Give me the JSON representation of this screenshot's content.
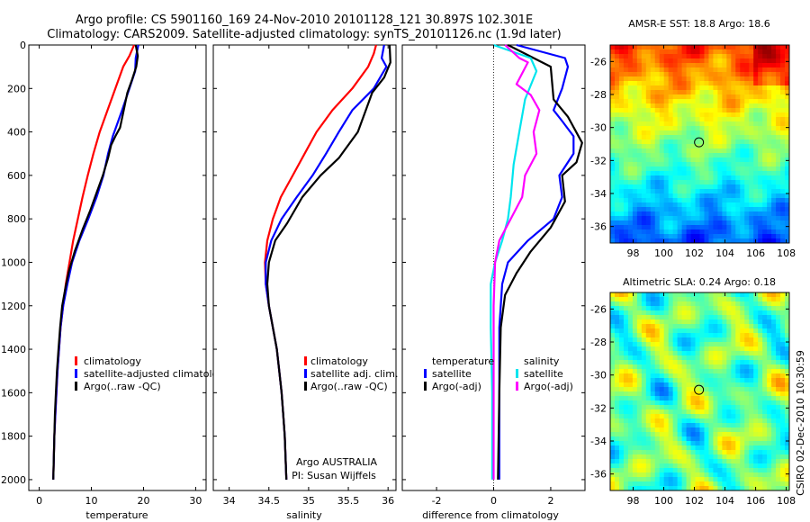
{
  "title": {
    "line1": "Argo profile: CS 5901160_169 24-Nov-2010 20101128_121 30.897S 102.301E",
    "line2": "Climatology: CARS2009. Satellite-adjusted climatology: synTS_20101126.nc (1.9d later)"
  },
  "colors": {
    "climatology": "#ff0000",
    "satellite": "#0000ff",
    "argo": "#000000",
    "sal_satellite": "#00e5ee",
    "sal_argo": "#ff00ff"
  },
  "depth_ticks": [
    "0",
    "200",
    "400",
    "600",
    "800",
    "1000",
    "1200",
    "1400",
    "1600",
    "1800",
    "2000"
  ],
  "credit": {
    "line1": "Argo AUSTRALIA",
    "line2": "PI: Susan Wijffels"
  },
  "side_label": "CSIRO 02-Dec-2010 10:30:59",
  "maps": {
    "sst": {
      "title": "AMSR-E SST: 18.8 Argo: 18.6",
      "lat_ticks": [
        "-26",
        "-28",
        "-30",
        "-32",
        "-34",
        "-36"
      ],
      "lon_ticks": [
        "98",
        "100",
        "102",
        "104",
        "106",
        "108"
      ]
    },
    "sla": {
      "title": "Altimetric SLA: 0.24 Argo: 0.18",
      "lat_ticks": [
        "-26",
        "-28",
        "-30",
        "-32",
        "-34",
        "-36"
      ],
      "lon_ticks": [
        "98",
        "100",
        "102",
        "104",
        "106",
        "108"
      ]
    },
    "float_position": {
      "lon": 102.3,
      "lat": -30.9
    }
  },
  "chart_data": [
    {
      "type": "line",
      "name": "temperature-profile",
      "xlabel": "temperature",
      "ylabel": "",
      "xlim": [
        -2,
        32
      ],
      "ylim": [
        2050,
        0
      ],
      "xticks": [
        "0",
        "10",
        "20",
        "30"
      ],
      "legend": [
        "climatology",
        "satellite-adjusted climatolog",
        "Argo(..raw -QC)"
      ],
      "legend_position": "bottom-right",
      "series": [
        {
          "name": "climatology",
          "color": "#ff0000",
          "points": [
            [
              18.2,
              0
            ],
            [
              17.3,
              50
            ],
            [
              16.1,
              100
            ],
            [
              14.6,
              200
            ],
            [
              13.1,
              300
            ],
            [
              11.6,
              400
            ],
            [
              10.4,
              500
            ],
            [
              9.3,
              600
            ],
            [
              8.3,
              700
            ],
            [
              7.4,
              800
            ],
            [
              6.5,
              900
            ],
            [
              5.8,
              1000
            ],
            [
              5.1,
              1100
            ],
            [
              4.6,
              1200
            ],
            [
              4.1,
              1300
            ],
            [
              3.8,
              1400
            ],
            [
              3.5,
              1500
            ],
            [
              3.3,
              1600
            ],
            [
              3.1,
              1700
            ],
            [
              2.9,
              1800
            ],
            [
              2.8,
              1900
            ],
            [
              2.7,
              2000
            ]
          ]
        },
        {
          "name": "satellite-adjusted climatolog",
          "color": "#0000ff",
          "points": [
            [
              19.0,
              0
            ],
            [
              18.5,
              60
            ],
            [
              18.4,
              120
            ],
            [
              17.3,
              200
            ],
            [
              15.9,
              300
            ],
            [
              14.7,
              380
            ],
            [
              14.1,
              420
            ],
            [
              13.2,
              500
            ],
            [
              12.3,
              600
            ],
            [
              11.0,
              700
            ],
            [
              9.4,
              800
            ],
            [
              7.7,
              900
            ],
            [
              6.3,
              1000
            ],
            [
              5.4,
              1100
            ],
            [
              4.6,
              1200
            ],
            [
              4.1,
              1300
            ],
            [
              3.8,
              1400
            ],
            [
              3.5,
              1500
            ],
            [
              3.3,
              1600
            ],
            [
              3.1,
              1700
            ],
            [
              2.9,
              1800
            ],
            [
              2.8,
              1900
            ],
            [
              2.7,
              2000
            ]
          ]
        },
        {
          "name": "Argo(..raw -QC)",
          "color": "#000000",
          "points": [
            [
              18.5,
              0
            ],
            [
              18.9,
              50
            ],
            [
              18.6,
              100
            ],
            [
              17.8,
              160
            ],
            [
              16.9,
              220
            ],
            [
              16.2,
              300
            ],
            [
              15.5,
              380
            ],
            [
              14.6,
              420
            ],
            [
              13.8,
              460
            ],
            [
              13.2,
              520
            ],
            [
              12.2,
              600
            ],
            [
              11.0,
              680
            ],
            [
              9.8,
              760
            ],
            [
              8.3,
              850
            ],
            [
              6.8,
              950
            ],
            [
              5.7,
              1040
            ],
            [
              5.0,
              1120
            ],
            [
              4.4,
              1200
            ],
            [
              4.0,
              1300
            ],
            [
              3.7,
              1400
            ],
            [
              3.4,
              1500
            ],
            [
              3.2,
              1600
            ],
            [
              3.0,
              1700
            ],
            [
              2.9,
              1800
            ],
            [
              2.8,
              1900
            ],
            [
              2.7,
              2000
            ]
          ]
        }
      ]
    },
    {
      "type": "line",
      "name": "salinity-profile",
      "xlabel": "salinity",
      "ylabel": "",
      "xlim": [
        33.8,
        36.1
      ],
      "ylim": [
        2050,
        0
      ],
      "xticks": [
        "34",
        "34.5",
        "35",
        "35.5",
        "36"
      ],
      "legend": [
        "climatology",
        "satellite adj. clim.",
        "Argo(..raw -QC)"
      ],
      "legend_position": "bottom-right",
      "series": [
        {
          "name": "climatology",
          "color": "#ff0000",
          "points": [
            [
              35.85,
              0
            ],
            [
              35.82,
              40
            ],
            [
              35.75,
              100
            ],
            [
              35.55,
              200
            ],
            [
              35.3,
              300
            ],
            [
              35.1,
              400
            ],
            [
              34.95,
              500
            ],
            [
              34.8,
              600
            ],
            [
              34.65,
              700
            ],
            [
              34.55,
              800
            ],
            [
              34.48,
              900
            ],
            [
              34.45,
              1000
            ],
            [
              34.46,
              1100
            ],
            [
              34.5,
              1200
            ],
            [
              34.55,
              1300
            ],
            [
              34.6,
              1400
            ],
            [
              34.63,
              1500
            ],
            [
              34.66,
              1600
            ],
            [
              34.68,
              1700
            ],
            [
              34.7,
              1800
            ],
            [
              34.71,
              1900
            ],
            [
              34.72,
              2000
            ]
          ]
        },
        {
          "name": "satellite adj. clim.",
          "color": "#0000ff",
          "points": [
            [
              35.95,
              0
            ],
            [
              35.92,
              60
            ],
            [
              35.98,
              100
            ],
            [
              35.82,
              200
            ],
            [
              35.55,
              300
            ],
            [
              35.38,
              400
            ],
            [
              35.22,
              500
            ],
            [
              35.05,
              600
            ],
            [
              34.85,
              700
            ],
            [
              34.66,
              800
            ],
            [
              34.53,
              900
            ],
            [
              34.46,
              1000
            ],
            [
              34.46,
              1100
            ],
            [
              34.5,
              1200
            ],
            [
              34.55,
              1300
            ],
            [
              34.6,
              1400
            ],
            [
              34.63,
              1500
            ],
            [
              34.66,
              1600
            ],
            [
              34.68,
              1700
            ],
            [
              34.7,
              1800
            ],
            [
              34.71,
              1900
            ],
            [
              34.72,
              2000
            ]
          ]
        },
        {
          "name": "Argo(..raw -QC)",
          "color": "#000000",
          "points": [
            [
              36.02,
              0
            ],
            [
              36.03,
              80
            ],
            [
              35.95,
              150
            ],
            [
              35.8,
              220
            ],
            [
              35.72,
              300
            ],
            [
              35.62,
              400
            ],
            [
              35.38,
              520
            ],
            [
              35.15,
              600
            ],
            [
              34.92,
              700
            ],
            [
              34.73,
              820
            ],
            [
              34.58,
              900
            ],
            [
              34.5,
              1000
            ],
            [
              34.48,
              1100
            ],
            [
              34.5,
              1200
            ],
            [
              34.55,
              1300
            ],
            [
              34.6,
              1400
            ],
            [
              34.63,
              1500
            ],
            [
              34.66,
              1600
            ],
            [
              34.68,
              1700
            ],
            [
              34.7,
              1800
            ],
            [
              34.71,
              1900
            ],
            [
              34.72,
              2000
            ]
          ]
        }
      ]
    },
    {
      "type": "line",
      "name": "difference-from-climatology",
      "xlabel": "difference from climatology",
      "ylabel": "",
      "xlim": [
        -3.2,
        3.2
      ],
      "ylim": [
        2050,
        0
      ],
      "xticks": [
        "-2",
        "0",
        "2"
      ],
      "zero_line": true,
      "legend_groups": [
        {
          "title": "temperature",
          "items": [
            "satellite",
            "Argo(-adj)"
          ]
        },
        {
          "title": "salinity",
          "items": [
            "satellite",
            "Argo(-adj)"
          ]
        }
      ],
      "legend_position": "bottom",
      "series": [
        {
          "name": "temperature satellite",
          "color": "#0000ff",
          "points": [
            [
              0.8,
              0
            ],
            [
              2.5,
              60
            ],
            [
              2.6,
              100
            ],
            [
              2.4,
              200
            ],
            [
              2.1,
              300
            ],
            [
              2.4,
              350
            ],
            [
              2.8,
              420
            ],
            [
              2.8,
              500
            ],
            [
              2.3,
              600
            ],
            [
              2.4,
              700
            ],
            [
              2.1,
              800
            ],
            [
              1.2,
              900
            ],
            [
              0.5,
              1000
            ],
            [
              0.3,
              1100
            ],
            [
              0.2,
              1300
            ],
            [
              0.2,
              1600
            ],
            [
              0.2,
              2000
            ]
          ]
        },
        {
          "name": "temperature Argo(-adj)",
          "color": "#000000",
          "points": [
            [
              0.5,
              0
            ],
            [
              2.0,
              100
            ],
            [
              2.1,
              250
            ],
            [
              2.6,
              330
            ],
            [
              3.1,
              450
            ],
            [
              2.9,
              540
            ],
            [
              2.4,
              600
            ],
            [
              2.5,
              720
            ],
            [
              2.0,
              840
            ],
            [
              1.3,
              950
            ],
            [
              0.8,
              1050
            ],
            [
              0.4,
              1150
            ],
            [
              0.25,
              1300
            ],
            [
              0.2,
              1600
            ],
            [
              0.15,
              2000
            ]
          ]
        },
        {
          "name": "salinity satellite",
          "color": "#00e5ee",
          "points": [
            [
              0.0,
              0
            ],
            [
              1.3,
              60
            ],
            [
              1.5,
              120
            ],
            [
              1.1,
              250
            ],
            [
              0.9,
              400
            ],
            [
              0.7,
              550
            ],
            [
              0.6,
              700
            ],
            [
              0.5,
              800
            ],
            [
              0.3,
              900
            ],
            [
              0.05,
              1000
            ],
            [
              -0.1,
              1100
            ],
            [
              -0.1,
              1300
            ],
            [
              -0.05,
              1600
            ],
            [
              -0.05,
              2000
            ]
          ]
        },
        {
          "name": "salinity Argo(-adj)",
          "color": "#ff00ff",
          "points": [
            [
              0.4,
              0
            ],
            [
              0.9,
              60
            ],
            [
              1.2,
              80
            ],
            [
              0.8,
              180
            ],
            [
              1.3,
              230
            ],
            [
              1.6,
              300
            ],
            [
              1.4,
              400
            ],
            [
              1.5,
              500
            ],
            [
              1.1,
              600
            ],
            [
              1.0,
              700
            ],
            [
              0.6,
              800
            ],
            [
              0.2,
              900
            ],
            [
              0.05,
              1000
            ],
            [
              0.0,
              1200
            ],
            [
              0.0,
              1600
            ],
            [
              0.0,
              2000
            ]
          ]
        }
      ]
    }
  ]
}
